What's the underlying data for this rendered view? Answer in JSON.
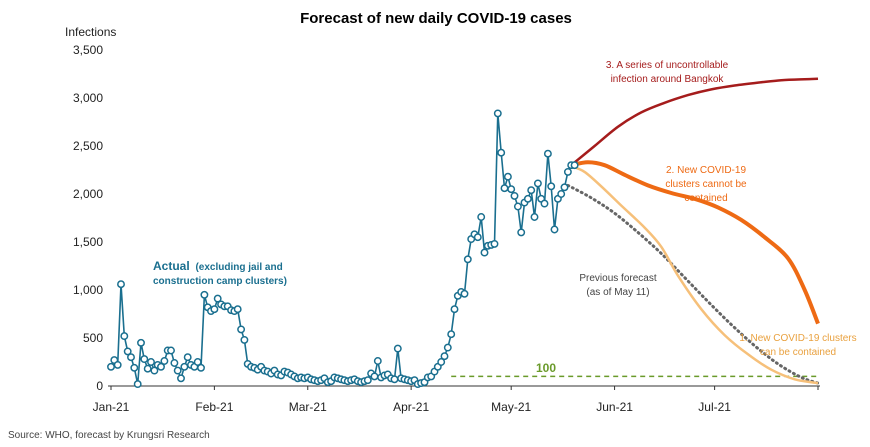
{
  "chart_data": {
    "type": "line",
    "title": "Forecast of new daily COVID-19 cases",
    "ylabel": "Infections",
    "ylim": [
      0,
      3500
    ],
    "yticks": [
      0,
      500,
      1000,
      1500,
      2000,
      2500,
      3000,
      3500
    ],
    "ytick_labels": [
      "0",
      "500",
      "1,000",
      "1,500",
      "2,000",
      "2,500",
      "3,000",
      "3,500"
    ],
    "x_start": "2021-01-01",
    "x_end": "2021-08-01",
    "xticks": [
      {
        "date": "2021-01-01",
        "label": "Jan-21"
      },
      {
        "date": "2021-02-01",
        "label": "Feb-21"
      },
      {
        "date": "2021-03-01",
        "label": "Mar-21"
      },
      {
        "date": "2021-04-01",
        "label": "Apr-21"
      },
      {
        "date": "2021-05-01",
        "label": "May-21"
      },
      {
        "date": "2021-06-01",
        "label": "Jun-21"
      },
      {
        "date": "2021-07-01",
        "label": "Jul-21"
      }
    ],
    "grid": false,
    "colors": {
      "actual": "#1a6f8f",
      "scenario3": "#a51c1c",
      "scenario2": "#ee6a14",
      "scenario1": "#f6c07a",
      "previous": "#666666",
      "threshold": "#6a9a2a"
    },
    "series": [
      {
        "key": "actual",
        "start_date": "2021-01-01",
        "values": [
          200,
          270,
          220,
          1060,
          520,
          360,
          300,
          190,
          20,
          450,
          280,
          180,
          250,
          160,
          220,
          200,
          260,
          370,
          370,
          240,
          160,
          80,
          200,
          300,
          220,
          200,
          250,
          190,
          950,
          820,
          780,
          800,
          910,
          850,
          830,
          830,
          790,
          780,
          800,
          590,
          480,
          230,
          200,
          190,
          170,
          200,
          160,
          150,
          130,
          160,
          120,
          110,
          150,
          140,
          120,
          100,
          80,
          90,
          80,
          90,
          70,
          60,
          50,
          60,
          80,
          40,
          50,
          90,
          80,
          70,
          60,
          50,
          60,
          70,
          50,
          40,
          50,
          60,
          130,
          100,
          260,
          90,
          110,
          120,
          80,
          70,
          390,
          80,
          70,
          60,
          50,
          60,
          20,
          30,
          40,
          90,
          100,
          150,
          200,
          250,
          310,
          400,
          540,
          800,
          940,
          980,
          960,
          1320,
          1530,
          1580,
          1550,
          1760,
          1390,
          1460,
          1470,
          1480,
          2840,
          2430,
          2060,
          2180,
          2050,
          1980,
          1870,
          1600,
          1910,
          1950,
          2040,
          1760,
          2110,
          1950,
          1900,
          2420,
          2080,
          1630,
          1950,
          2000,
          2070,
          2230,
          2300,
          2300
        ]
      },
      {
        "key": "previous",
        "points": [
          [
            "2021-05-18",
            2090
          ],
          [
            "2021-05-25",
            1960
          ],
          [
            "2021-06-01",
            1800
          ],
          [
            "2021-06-08",
            1600
          ],
          [
            "2021-06-15",
            1380
          ],
          [
            "2021-06-22",
            1130
          ],
          [
            "2021-06-29",
            880
          ],
          [
            "2021-07-06",
            640
          ],
          [
            "2021-07-13",
            420
          ],
          [
            "2021-07-20",
            230
          ],
          [
            "2021-07-27",
            90
          ],
          [
            "2021-08-01",
            30
          ]
        ]
      },
      {
        "key": "scenario1",
        "points": [
          [
            "2021-05-19",
            2290
          ],
          [
            "2021-05-23",
            2230
          ],
          [
            "2021-05-28",
            2080
          ],
          [
            "2021-06-03",
            1880
          ],
          [
            "2021-06-10",
            1650
          ],
          [
            "2021-06-15",
            1450
          ],
          [
            "2021-06-20",
            1150
          ],
          [
            "2021-06-27",
            800
          ],
          [
            "2021-07-04",
            530
          ],
          [
            "2021-07-11",
            330
          ],
          [
            "2021-07-18",
            170
          ],
          [
            "2021-07-25",
            70
          ],
          [
            "2021-08-01",
            30
          ]
        ]
      },
      {
        "key": "scenario2",
        "points": [
          [
            "2021-05-19",
            2300
          ],
          [
            "2021-05-24",
            2330
          ],
          [
            "2021-05-29",
            2300
          ],
          [
            "2021-06-04",
            2200
          ],
          [
            "2021-06-11",
            2090
          ],
          [
            "2021-06-18",
            2010
          ],
          [
            "2021-06-25",
            1950
          ],
          [
            "2021-07-02",
            1860
          ],
          [
            "2021-07-09",
            1730
          ],
          [
            "2021-07-16",
            1550
          ],
          [
            "2021-07-23",
            1330
          ],
          [
            "2021-07-28",
            1000
          ],
          [
            "2021-08-01",
            650
          ]
        ]
      },
      {
        "key": "scenario3",
        "points": [
          [
            "2021-05-19",
            2300
          ],
          [
            "2021-05-26",
            2500
          ],
          [
            "2021-06-02",
            2700
          ],
          [
            "2021-06-09",
            2850
          ],
          [
            "2021-06-16",
            2950
          ],
          [
            "2021-06-23",
            3030
          ],
          [
            "2021-06-30",
            3090
          ],
          [
            "2021-07-07",
            3130
          ],
          [
            "2021-07-14",
            3160
          ],
          [
            "2021-07-21",
            3185
          ],
          [
            "2021-07-28",
            3195
          ],
          [
            "2021-08-01",
            3200
          ]
        ]
      },
      {
        "key": "threshold",
        "points": [
          [
            "2021-04-13",
            100
          ],
          [
            "2021-08-01",
            100
          ]
        ]
      }
    ],
    "annotations": {
      "actual_main": "Actual",
      "actual_sub1": "(excluding jail and",
      "actual_sub2": "construction camp clusters)",
      "previous_1": "Previous forecast",
      "previous_2": "(as of May 11)",
      "scenario1_1": "1. New COVID-19 clusters",
      "scenario1_2": "can be contained",
      "scenario2_1": "2. New COVID-19",
      "scenario2_2": "clusters cannot be",
      "scenario2_3": "contained",
      "scenario3_1": "3. A series of uncontrollable",
      "scenario3_2": "infection around Bangkok",
      "threshold_label": "100"
    },
    "source": "Source: WHO, forecast by Krungsri Research"
  }
}
